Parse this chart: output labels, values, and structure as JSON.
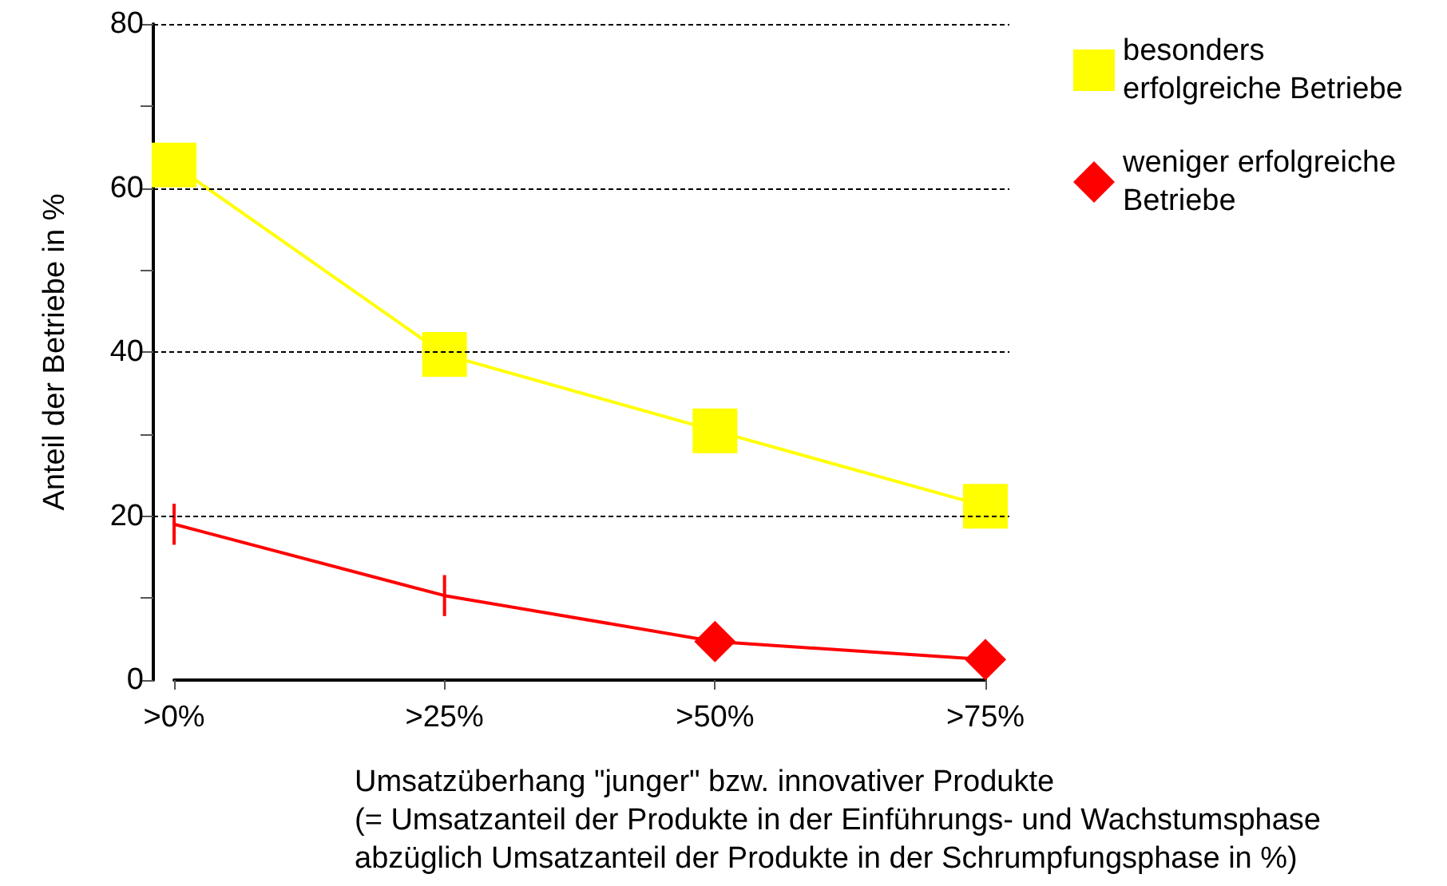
{
  "chart_data": {
    "type": "line",
    "categories": [
      ">0%",
      ">25%",
      ">50%",
      ">75%"
    ],
    "series": [
      {
        "name": "besonders erfolgreiche Betriebe",
        "color": "#ffff00",
        "marker": "square",
        "values": [
          62.8,
          39.7,
          30.4,
          21.2
        ]
      },
      {
        "name": "weniger erfolgreiche Betriebe",
        "color": "#ff0000",
        "marker": "diamond",
        "values": [
          19,
          10.3,
          4.7,
          2.5
        ],
        "errors": [
          2.5,
          2.5,
          null,
          null
        ]
      }
    ],
    "ylim": [
      0,
      80
    ],
    "yticks": [
      0,
      {
        "value": 10,
        "label": null
      },
      20,
      {
        "value": 30,
        "label": null
      },
      40,
      {
        "value": 50,
        "label": null
      },
      60,
      {
        "value": 70,
        "label": null
      },
      80
    ],
    "ylabel": "Anteil der Betriebe in %",
    "xlabel": "Umsatzüberhang \"junger\" bzw. innovativer Produkte\n(= Umsatzanteil der Produkte in der Einführungs- und Wachstumsphase\nabzüglich Umsatzanteil der Produkte in der Schrumpfungsphase in %)",
    "grid": "y",
    "legend": "top right",
    "line_style": "solid"
  }
}
